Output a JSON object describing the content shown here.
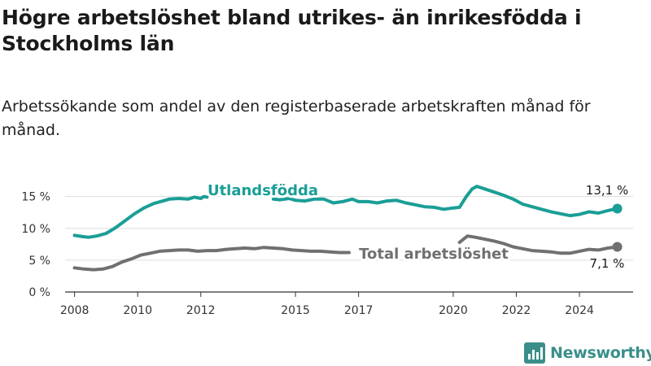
{
  "title": "Högre arbetslöshet bland utrikes- än inrikesfödda i Stockholms län",
  "subtitle": "Arbetssökande som andel av den registerbaserade arbetskraften månad för månad.",
  "brand": {
    "name": "Newsworthy",
    "color": "#3a8f8a"
  },
  "colors": {
    "foreign": "#1a9e96",
    "total": "#707070",
    "grid": "#dddddd",
    "axis": "#333333"
  },
  "chart_data": {
    "type": "line",
    "ylim": [
      0,
      17
    ],
    "xlim": [
      2007.7,
      2025.7
    ],
    "yticks": [
      0,
      5,
      10,
      15
    ],
    "ytick_labels": [
      "0 %",
      "5 %",
      "10 %",
      "15 %"
    ],
    "xticks": [
      2008,
      2010,
      2012,
      2015,
      2017,
      2020,
      2022,
      2024
    ],
    "xtick_labels": [
      "2008",
      "2010",
      "2012",
      "2015",
      "2017",
      "2020",
      "2022",
      "2024"
    ],
    "series": [
      {
        "name": "Utlandsfödda",
        "end_label": "13,1 %",
        "segments": [
          [
            [
              2008.0,
              8.9
            ],
            [
              2008.25,
              8.7
            ],
            [
              2008.45,
              8.6
            ],
            [
              2008.7,
              8.8
            ],
            [
              2009.0,
              9.2
            ],
            [
              2009.3,
              10.1
            ],
            [
              2009.6,
              11.2
            ],
            [
              2009.9,
              12.3
            ],
            [
              2010.2,
              13.2
            ],
            [
              2010.5,
              13.9
            ],
            [
              2010.8,
              14.3
            ],
            [
              2011.0,
              14.6
            ],
            [
              2011.3,
              14.7
            ],
            [
              2011.6,
              14.6
            ],
            [
              2011.8,
              14.9
            ],
            [
              2012.0,
              14.7
            ],
            [
              2012.1,
              15.0
            ],
            [
              2012.2,
              14.9
            ]
          ],
          [
            [
              2014.3,
              14.6
            ],
            [
              2014.5,
              14.5
            ],
            [
              2014.8,
              14.7
            ],
            [
              2015.0,
              14.4
            ],
            [
              2015.3,
              14.3
            ],
            [
              2015.6,
              14.6
            ],
            [
              2015.9,
              14.6
            ],
            [
              2016.2,
              14.0
            ],
            [
              2016.5,
              14.2
            ],
            [
              2016.8,
              14.6
            ],
            [
              2017.0,
              14.2
            ],
            [
              2017.3,
              14.2
            ],
            [
              2017.6,
              14.0
            ],
            [
              2017.9,
              14.3
            ],
            [
              2018.2,
              14.4
            ],
            [
              2018.5,
              14.0
            ],
            [
              2018.8,
              13.7
            ],
            [
              2019.1,
              13.4
            ],
            [
              2019.4,
              13.3
            ],
            [
              2019.7,
              13.0
            ],
            [
              2020.0,
              13.2
            ],
            [
              2020.2,
              13.3
            ],
            [
              2020.4,
              14.9
            ],
            [
              2020.6,
              16.2
            ],
            [
              2020.75,
              16.6
            ],
            [
              2021.0,
              16.2
            ],
            [
              2021.3,
              15.7
            ],
            [
              2021.6,
              15.2
            ],
            [
              2021.9,
              14.6
            ],
            [
              2022.2,
              13.8
            ],
            [
              2022.5,
              13.4
            ],
            [
              2022.8,
              13.0
            ],
            [
              2023.1,
              12.6
            ],
            [
              2023.4,
              12.3
            ],
            [
              2023.7,
              12.0
            ],
            [
              2024.0,
              12.2
            ],
            [
              2024.3,
              12.6
            ],
            [
              2024.6,
              12.4
            ],
            [
              2024.9,
              12.8
            ],
            [
              2025.2,
              13.1
            ]
          ]
        ]
      },
      {
        "name": "Total arbetslöshet",
        "end_label": "7,1 %",
        "segments": [
          [
            [
              2008.0,
              3.8
            ],
            [
              2008.3,
              3.6
            ],
            [
              2008.6,
              3.5
            ],
            [
              2008.9,
              3.6
            ],
            [
              2009.2,
              4.0
            ],
            [
              2009.5,
              4.7
            ],
            [
              2009.8,
              5.2
            ],
            [
              2010.1,
              5.8
            ],
            [
              2010.4,
              6.1
            ],
            [
              2010.7,
              6.4
            ],
            [
              2011.0,
              6.5
            ],
            [
              2011.3,
              6.6
            ],
            [
              2011.6,
              6.6
            ],
            [
              2011.9,
              6.4
            ],
            [
              2012.2,
              6.5
            ],
            [
              2012.5,
              6.5
            ],
            [
              2012.8,
              6.7
            ],
            [
              2013.1,
              6.8
            ],
            [
              2013.4,
              6.9
            ],
            [
              2013.7,
              6.8
            ],
            [
              2014.0,
              7.0
            ],
            [
              2014.3,
              6.9
            ],
            [
              2014.6,
              6.8
            ],
            [
              2014.9,
              6.6
            ],
            [
              2015.2,
              6.5
            ],
            [
              2015.5,
              6.4
            ],
            [
              2015.8,
              6.4
            ],
            [
              2016.1,
              6.3
            ],
            [
              2016.4,
              6.2
            ],
            [
              2016.7,
              6.2
            ]
          ],
          [
            [
              2020.2,
              7.8
            ],
            [
              2020.45,
              8.8
            ],
            [
              2020.7,
              8.6
            ],
            [
              2021.0,
              8.3
            ],
            [
              2021.3,
              8.0
            ],
            [
              2021.6,
              7.6
            ],
            [
              2021.9,
              7.1
            ],
            [
              2022.2,
              6.8
            ],
            [
              2022.5,
              6.5
            ],
            [
              2022.8,
              6.4
            ],
            [
              2023.1,
              6.3
            ],
            [
              2023.4,
              6.1
            ],
            [
              2023.7,
              6.1
            ],
            [
              2024.0,
              6.4
            ],
            [
              2024.3,
              6.7
            ],
            [
              2024.6,
              6.6
            ],
            [
              2024.9,
              6.9
            ],
            [
              2025.2,
              7.1
            ]
          ]
        ]
      }
    ]
  }
}
